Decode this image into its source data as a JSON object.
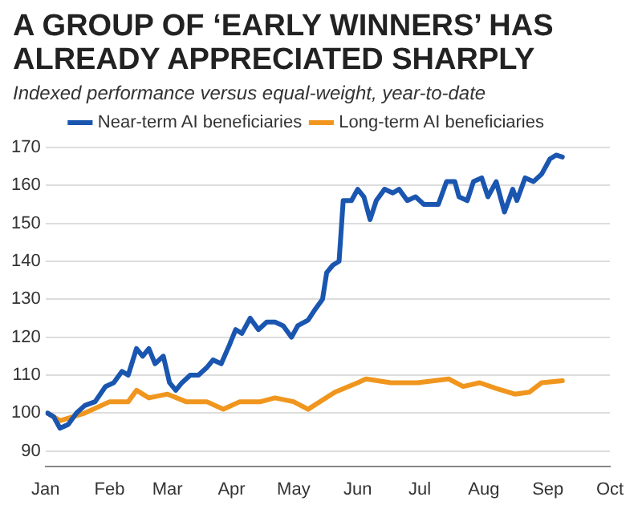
{
  "chart_data": {
    "type": "line",
    "title": "A GROUP OF ‘EARLY WINNERS’ HAS ALREADY APPRECIATED SHARPLY",
    "subtitle": "Indexed performance versus equal-weight, year-to-date",
    "series": [
      {
        "name": "Near-term AI beneficiaries",
        "color": "#1a56b0",
        "x": [
          "--01-02",
          "--01-05",
          "--01-08",
          "--01-12",
          "--01-16",
          "--01-20",
          "--01-25",
          "--01-30",
          "--02-03",
          "--02-07",
          "--02-10",
          "--02-14",
          "--02-17",
          "--02-20",
          "--02-23",
          "--02-27",
          "--03-02",
          "--03-05",
          "--03-08",
          "--03-12",
          "--03-16",
          "--03-20",
          "--03-23",
          "--03-27",
          "--03-31",
          "--04-03",
          "--04-06",
          "--04-10",
          "--04-14",
          "--04-18",
          "--04-22",
          "--04-26",
          "--04-30",
          "--05-03",
          "--05-08",
          "--05-11",
          "--05-15",
          "--05-17",
          "--05-20",
          "--05-23",
          "--05-25",
          "--05-29",
          "--06-01",
          "--06-04",
          "--06-07",
          "--06-10",
          "--06-14",
          "--06-18",
          "--06-21",
          "--06-25",
          "--06-29",
          "--07-03",
          "--07-10",
          "--07-14",
          "--07-18",
          "--07-20",
          "--07-24",
          "--07-27",
          "--07-31",
          "--08-03",
          "--08-07",
          "--08-11",
          "--08-15",
          "--08-17",
          "--08-21",
          "--08-25",
          "--08-29",
          "--09-02",
          "--09-05",
          "--09-08"
        ],
        "values": [
          100,
          99,
          96,
          97,
          100,
          102,
          103,
          107,
          108,
          111,
          110,
          117,
          115,
          117,
          113,
          115,
          108,
          106,
          108,
          110,
          110,
          112,
          114,
          113,
          118,
          122,
          121,
          125,
          122,
          124,
          124,
          123,
          120,
          123,
          124.5,
          127,
          130,
          137,
          139,
          140,
          156,
          156,
          159,
          157,
          151,
          156,
          159,
          158,
          159,
          156,
          157,
          155,
          155,
          161,
          161,
          157,
          156,
          161,
          162,
          157,
          161,
          153,
          159,
          156,
          162,
          161,
          163,
          167,
          168,
          167.5
        ]
      },
      {
        "name": "Long-term AI beneficiaries",
        "color": "#f0961e",
        "x": [
          "--01-02",
          "--01-08",
          "--01-20",
          "--02-01",
          "--02-10",
          "--02-14",
          "--02-20",
          "--03-01",
          "--03-10",
          "--03-20",
          "--03-28",
          "--04-05",
          "--04-15",
          "--04-22",
          "--05-01",
          "--05-08",
          "--05-21",
          "--06-01",
          "--06-05",
          "--06-17",
          "--06-30",
          "--07-15",
          "--07-22",
          "--07-30",
          "--08-07",
          "--08-16",
          "--08-23",
          "--08-29",
          "--09-08"
        ],
        "values": [
          100,
          98,
          100,
          103,
          103,
          106,
          104,
          105,
          103,
          103,
          101,
          103,
          103,
          104,
          103,
          101,
          105.5,
          108,
          109,
          108,
          108,
          109,
          107,
          108,
          106.5,
          105,
          105.5,
          108,
          108.5
        ]
      }
    ],
    "xlim": [
      "--01-01",
      "--10-01"
    ],
    "xticks": [
      {
        "value": "--01-01",
        "label": "Jan"
      },
      {
        "value": "--02-01",
        "label": "Feb"
      },
      {
        "value": "--03-01",
        "label": "Mar"
      },
      {
        "value": "--04-01",
        "label": "Apr"
      },
      {
        "value": "--05-01",
        "label": "May"
      },
      {
        "value": "--06-01",
        "label": "Jun"
      },
      {
        "value": "--07-01",
        "label": "Jul"
      },
      {
        "value": "--08-01",
        "label": "Aug"
      },
      {
        "value": "--09-01",
        "label": "Sep"
      },
      {
        "value": "--10-01",
        "label": "Oct"
      }
    ],
    "ylim": [
      86,
      170
    ],
    "yticks": [
      90,
      100,
      110,
      120,
      130,
      140,
      150,
      160,
      170
    ],
    "grid": "y",
    "legend": "top",
    "marker": "none",
    "line_style": "solid"
  }
}
